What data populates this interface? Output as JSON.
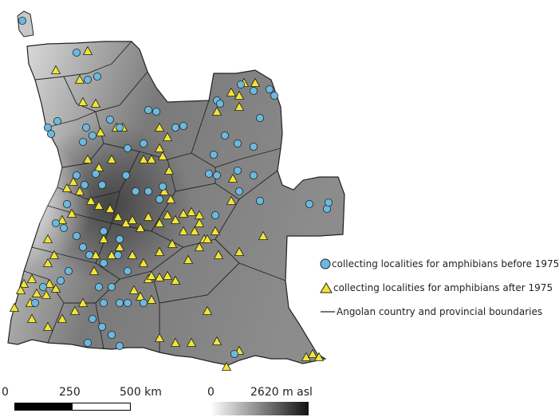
{
  "legend": {
    "before_label": "collecting localities for amphibians before 1975",
    "after_label": "collecting localities for amphibians after 1975",
    "boundary_label": "Angolan country and provincial boundaries",
    "before_color": "#6bb9df",
    "after_color": "#f2e533",
    "boundary_color": "#222222"
  },
  "scalebar": {
    "label_0": "0",
    "label_mid": "250",
    "label_end": "500 km"
  },
  "elevation": {
    "min_label": "0",
    "max_label": "2620 m asl"
  },
  "colors": {
    "land_low": "#e8e8e8",
    "land_mid": "#9a9a9a",
    "land_high": "#3a3a3a"
  }
}
